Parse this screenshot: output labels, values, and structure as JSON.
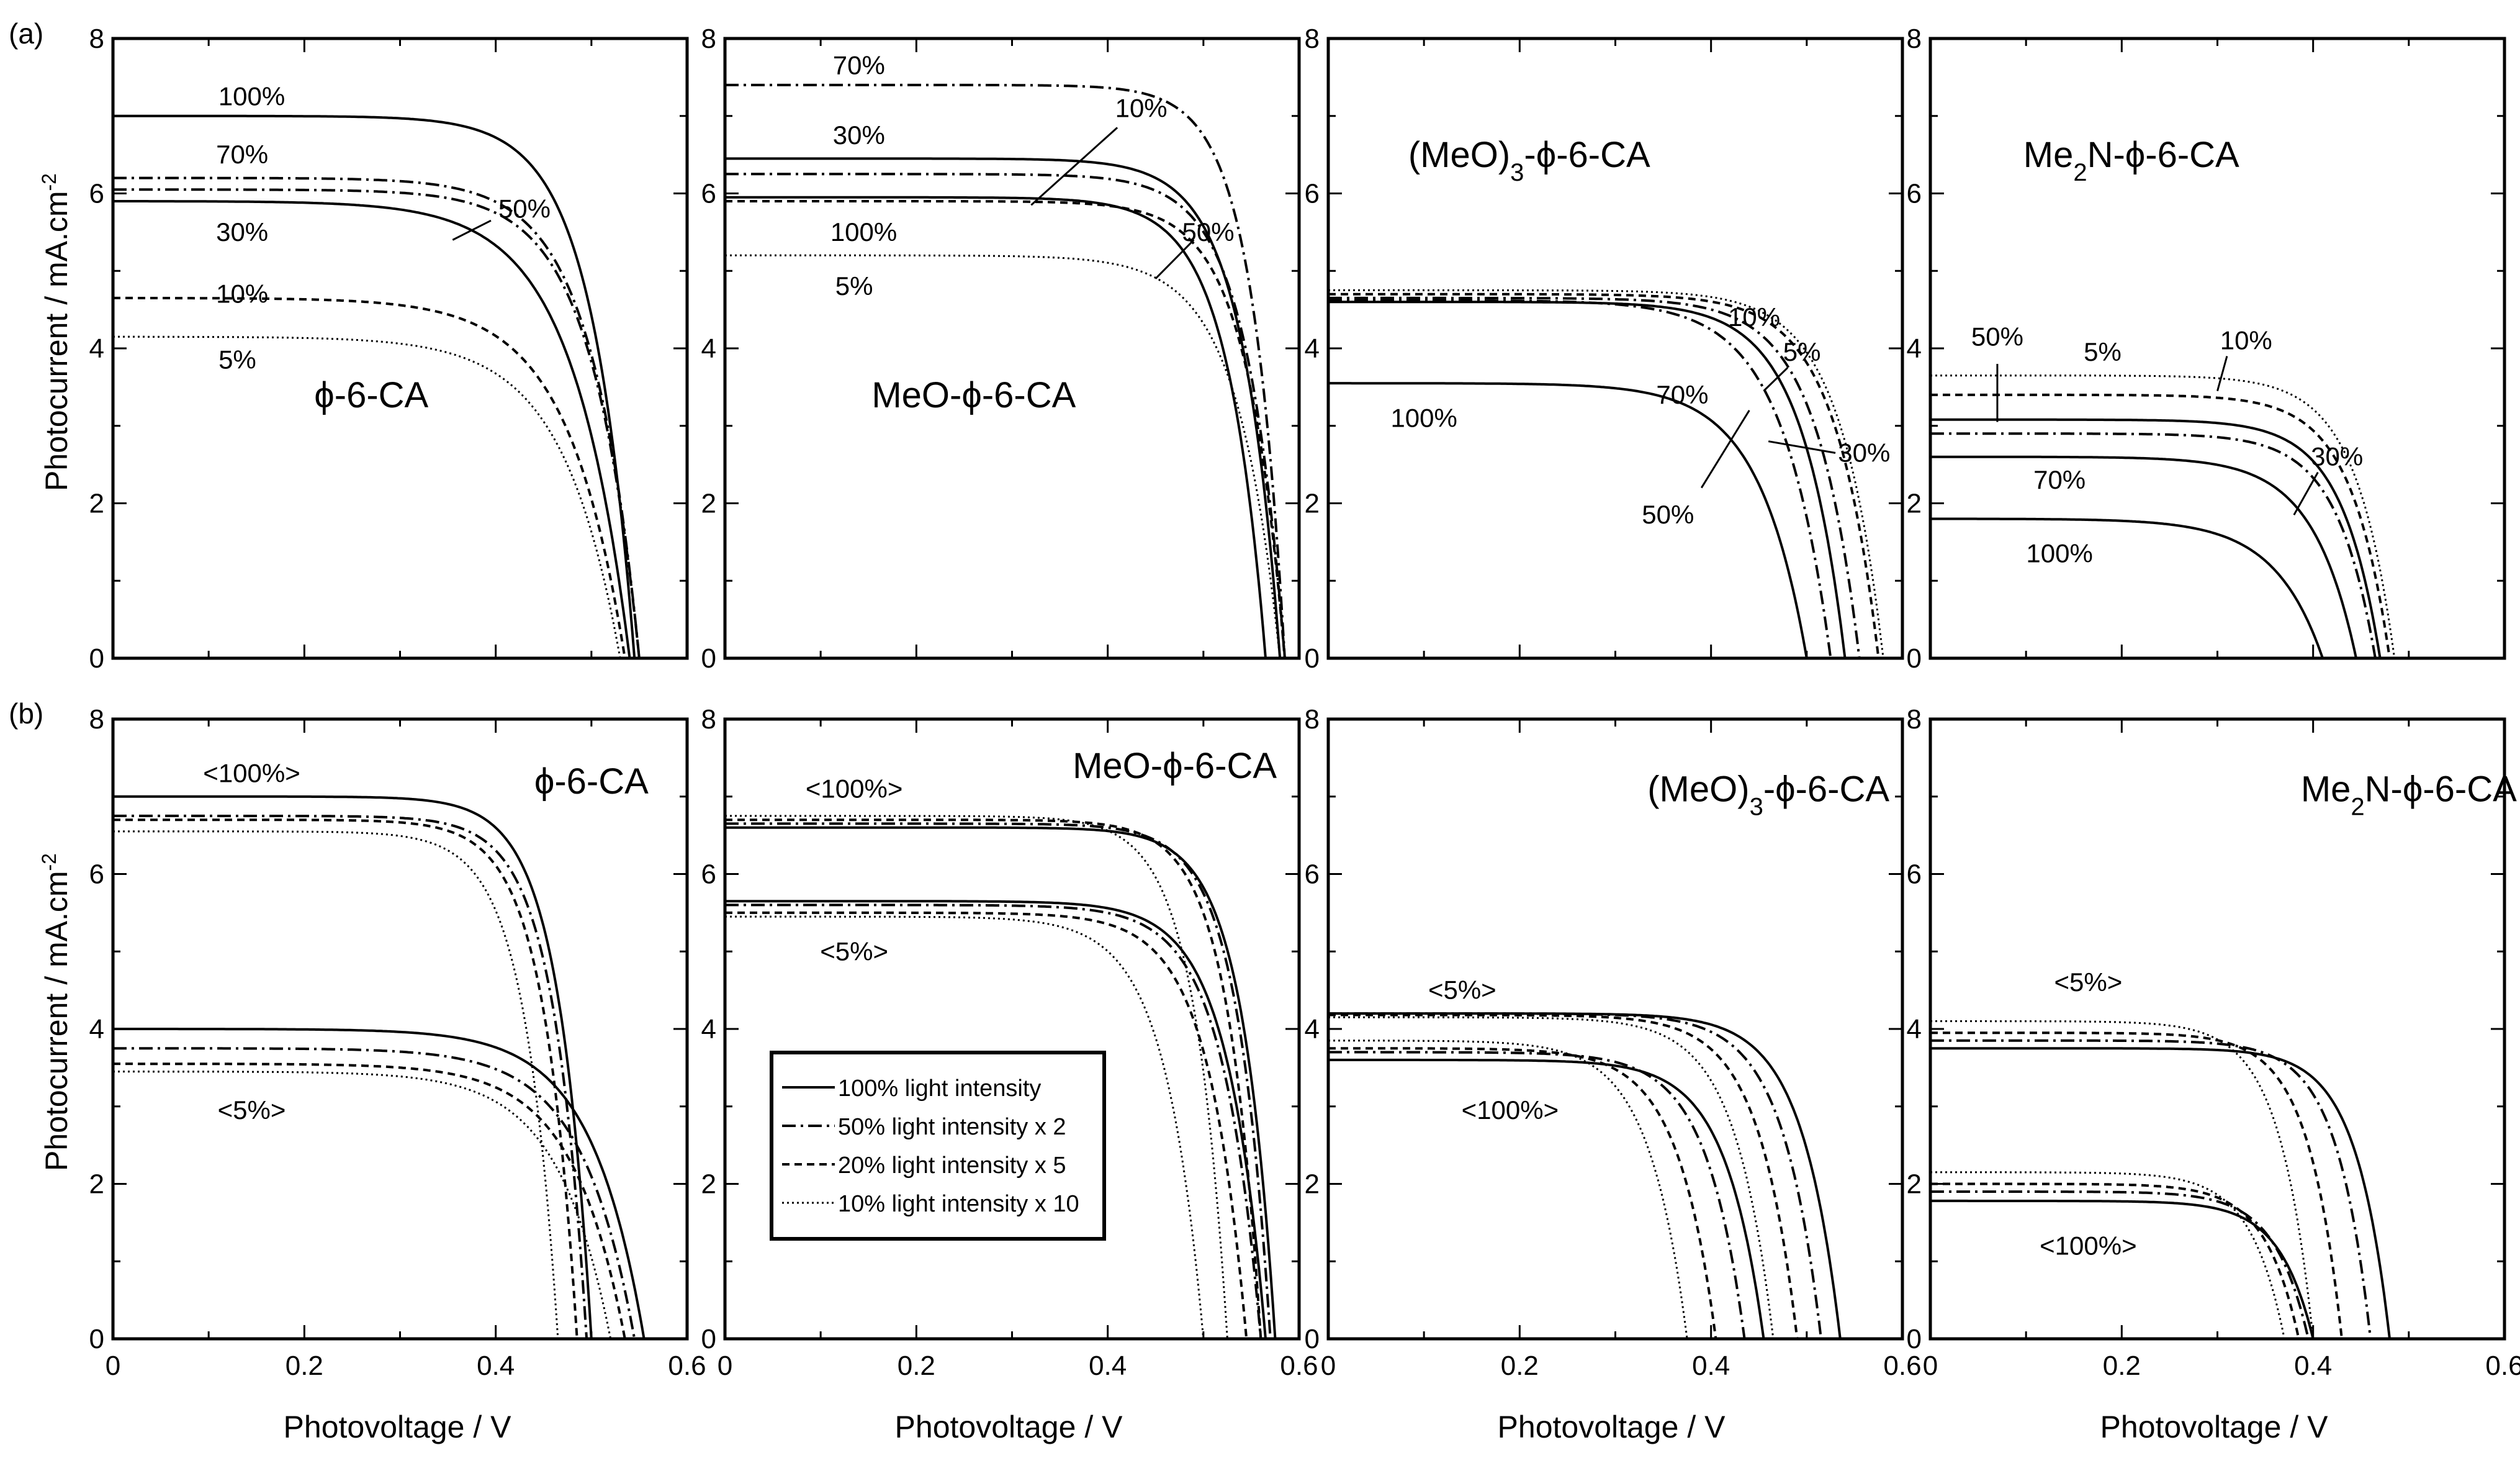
{
  "figure": {
    "panel_letters": [
      "(a)",
      "(b)"
    ],
    "ylabel": "Photocurrent / mA.cm",
    "ylabel_sup": "-2",
    "xlabel": "Photovoltage / V"
  },
  "legend": {
    "entries": [
      {
        "label": "100% light intensity",
        "style": "solid"
      },
      {
        "label": "50% light intensity x 2",
        "style": "dashdot"
      },
      {
        "label": "20% light intensity x 5",
        "style": "dashed"
      },
      {
        "label": "10% light intensity x 10",
        "style": "dotted"
      }
    ]
  },
  "colors": {
    "line": "#000000",
    "background": "#ffffff"
  },
  "chart_data": [
    {
      "type": "line",
      "row": "a",
      "col": 0,
      "title": "ϕ-6-CA",
      "title_parts": [
        {
          "t": "ϕ-6-CA"
        }
      ],
      "xlabel": "Photovoltage / V",
      "ylabel": "Photocurrent / mA.cm-2",
      "xlim": [
        0,
        0.6
      ],
      "ylim": [
        0,
        8
      ],
      "xticks": [
        0,
        0.2,
        0.4,
        0.6
      ],
      "yticks": [
        0,
        2,
        4,
        6,
        8
      ],
      "series": [
        {
          "name": "100%",
          "style": "solid",
          "isc": 7.0,
          "voc": 0.545,
          "k": 0.045
        },
        {
          "name": "70%",
          "style": "dashdot",
          "isc": 6.2,
          "voc": 0.55,
          "k": 0.05
        },
        {
          "name": "50%",
          "style": "dashdot",
          "isc": 6.05,
          "voc": 0.55,
          "k": 0.05
        },
        {
          "name": "30%",
          "style": "solid",
          "isc": 5.9,
          "voc": 0.54,
          "k": 0.06
        },
        {
          "name": "10%",
          "style": "dashed",
          "isc": 4.65,
          "voc": 0.535,
          "k": 0.06
        },
        {
          "name": "5%",
          "style": "dotted",
          "isc": 4.15,
          "voc": 0.53,
          "k": 0.06
        }
      ],
      "annotations": [
        {
          "text": "100%",
          "x": 0.145,
          "y": 7.25
        },
        {
          "text": "70%",
          "x": 0.135,
          "y": 6.5
        },
        {
          "text": "30%",
          "x": 0.135,
          "y": 5.5
        },
        {
          "text": "10%",
          "x": 0.135,
          "y": 4.7
        },
        {
          "text": "5%",
          "x": 0.13,
          "y": 3.85
        },
        {
          "text": "50%",
          "x": 0.43,
          "y": 5.8,
          "leader": [
            0.395,
            5.65,
            0.355,
            5.4
          ]
        }
      ]
    },
    {
      "type": "line",
      "row": "a",
      "col": 1,
      "title": "MeO-ϕ-6-CA",
      "title_parts": [
        {
          "t": "MeO-ϕ-6-CA"
        }
      ],
      "xlabel": "Photovoltage / V",
      "ylabel": "Photocurrent / mA.cm-2",
      "xlim": [
        0,
        0.6
      ],
      "ylim": [
        0,
        8
      ],
      "xticks": [
        0,
        0.2,
        0.4,
        0.6
      ],
      "yticks": [
        0,
        2,
        4,
        6,
        8
      ],
      "series": [
        {
          "name": "70%",
          "style": "dashdot",
          "isc": 7.4,
          "voc": 0.585,
          "k": 0.035
        },
        {
          "name": "30%",
          "style": "solid",
          "isc": 6.45,
          "voc": 0.58,
          "k": 0.04
        },
        {
          "name": "10%",
          "style": "dashdot",
          "isc": 6.25,
          "voc": 0.585,
          "k": 0.04
        },
        {
          "name": "100%",
          "style": "solid",
          "isc": 5.95,
          "voc": 0.565,
          "k": 0.04
        },
        {
          "name": "50%",
          "style": "dashed",
          "isc": 5.9,
          "voc": 0.585,
          "k": 0.04
        },
        {
          "name": "5%",
          "style": "dotted",
          "isc": 5.2,
          "voc": 0.58,
          "k": 0.045
        }
      ],
      "annotations": [
        {
          "text": "70%",
          "x": 0.14,
          "y": 7.65
        },
        {
          "text": "30%",
          "x": 0.14,
          "y": 6.75
        },
        {
          "text": "100%",
          "x": 0.145,
          "y": 5.5
        },
        {
          "text": "5%",
          "x": 0.135,
          "y": 4.8
        },
        {
          "text": "10%",
          "x": 0.435,
          "y": 7.1,
          "leader": [
            0.41,
            6.85,
            0.32,
            5.85
          ]
        },
        {
          "text": "50%",
          "x": 0.505,
          "y": 5.5,
          "leader": [
            0.49,
            5.4,
            0.45,
            4.9
          ]
        }
      ]
    },
    {
      "type": "line",
      "row": "a",
      "col": 2,
      "title": "(MeO)3-ϕ-6-CA",
      "title_parts": [
        {
          "t": "(MeO)"
        },
        {
          "t": "3",
          "sub": true
        },
        {
          "t": "-ϕ-6-CA"
        }
      ],
      "xlabel": "Photovoltage / V",
      "ylabel": "Photocurrent / mA.cm-2",
      "xlim": [
        0,
        0.6
      ],
      "ylim": [
        0,
        8
      ],
      "xticks": [
        0,
        0.2,
        0.4,
        0.6
      ],
      "yticks": [
        0,
        2,
        4,
        6,
        8
      ],
      "series": [
        {
          "name": "5%",
          "style": "dotted",
          "isc": 4.75,
          "voc": 0.58,
          "k": 0.045
        },
        {
          "name": "10%",
          "style": "dashed",
          "isc": 4.7,
          "voc": 0.575,
          "k": 0.045
        },
        {
          "name": "30%",
          "style": "dashdot",
          "isc": 4.65,
          "voc": 0.555,
          "k": 0.045
        },
        {
          "name": "70%",
          "style": "dashdot",
          "isc": 4.62,
          "voc": 0.525,
          "k": 0.05
        },
        {
          "name": "50%",
          "style": "solid",
          "isc": 4.6,
          "voc": 0.54,
          "k": 0.045
        },
        {
          "name": "100%",
          "style": "solid",
          "isc": 3.55,
          "voc": 0.5,
          "k": 0.05
        }
      ],
      "annotations": [
        {
          "text": "100%",
          "x": 0.1,
          "y": 3.1
        },
        {
          "text": "10%",
          "x": 0.445,
          "y": 4.4
        },
        {
          "text": "5%",
          "x": 0.495,
          "y": 3.95,
          "leader": [
            0.48,
            3.75,
            0.455,
            3.45
          ]
        },
        {
          "text": "70%",
          "x": 0.37,
          "y": 3.4
        },
        {
          "text": "30%",
          "x": 0.56,
          "y": 2.65,
          "leader": [
            0.53,
            2.65,
            0.46,
            2.8
          ]
        },
        {
          "text": "50%",
          "x": 0.355,
          "y": 1.85,
          "leader": [
            0.39,
            2.2,
            0.44,
            3.2
          ]
        }
      ]
    },
    {
      "type": "line",
      "row": "a",
      "col": 3,
      "title": "Me2N-ϕ-6-CA",
      "title_parts": [
        {
          "t": "Me"
        },
        {
          "t": "2",
          "sub": true
        },
        {
          "t": "N-ϕ-6-CA"
        }
      ],
      "xlabel": "Photovoltage / V",
      "ylabel": "Photocurrent / mA.cm-2",
      "xlim": [
        0,
        0.6
      ],
      "ylim": [
        0,
        8
      ],
      "xticks": [
        0,
        0.2,
        0.4,
        0.6
      ],
      "yticks": [
        0,
        2,
        4,
        6,
        8
      ],
      "series": [
        {
          "name": "5%",
          "style": "dotted",
          "isc": 3.65,
          "voc": 0.485,
          "k": 0.04
        },
        {
          "name": "10%",
          "style": "dashed",
          "isc": 3.4,
          "voc": 0.48,
          "k": 0.04
        },
        {
          "name": "50%",
          "style": "solid",
          "isc": 3.08,
          "voc": 0.47,
          "k": 0.04
        },
        {
          "name": "30%",
          "style": "dashdot",
          "isc": 2.9,
          "voc": 0.465,
          "k": 0.04
        },
        {
          "name": "70%",
          "style": "solid",
          "isc": 2.6,
          "voc": 0.445,
          "k": 0.045
        },
        {
          "name": "100%",
          "style": "solid",
          "isc": 1.8,
          "voc": 0.41,
          "k": 0.05
        }
      ],
      "annotations": [
        {
          "text": "50%",
          "x": 0.07,
          "y": 4.15,
          "leader": [
            0.07,
            3.8,
            0.07,
            3.05
          ]
        },
        {
          "text": "5%",
          "x": 0.18,
          "y": 3.95
        },
        {
          "text": "10%",
          "x": 0.33,
          "y": 4.1,
          "leader": [
            0.31,
            3.9,
            0.3,
            3.45
          ]
        },
        {
          "text": "70%",
          "x": 0.135,
          "y": 2.3
        },
        {
          "text": "30%",
          "x": 0.425,
          "y": 2.6,
          "leader": [
            0.405,
            2.4,
            0.38,
            1.85
          ]
        },
        {
          "text": "100%",
          "x": 0.135,
          "y": 1.35
        }
      ]
    },
    {
      "type": "line",
      "row": "b",
      "col": 0,
      "title": "ϕ-6-CA",
      "title_parts": [
        {
          "t": "ϕ-6-CA"
        }
      ],
      "xlabel": "Photovoltage / V",
      "ylabel": "Photocurrent / mA.cm-2",
      "xlim": [
        0,
        0.6
      ],
      "ylim": [
        0,
        8
      ],
      "xticks": [
        0,
        0.2,
        0.4,
        0.6
      ],
      "yticks": [
        0,
        2,
        4,
        6,
        8
      ],
      "series": [
        {
          "name": "<100%> 100% light intensity",
          "style": "solid",
          "isc": 7.0,
          "voc": 0.5,
          "k": 0.035
        },
        {
          "name": "<100%> 50% light intensity x 2",
          "style": "dashdot",
          "isc": 6.75,
          "voc": 0.495,
          "k": 0.035
        },
        {
          "name": "<100%> 20% light intensity x 5",
          "style": "dashed",
          "isc": 6.7,
          "voc": 0.485,
          "k": 0.035
        },
        {
          "name": "<100%> 10% light intensity x 10",
          "style": "dotted",
          "isc": 6.55,
          "voc": 0.465,
          "k": 0.035
        },
        {
          "name": "<5%> 100% light intensity",
          "style": "solid",
          "isc": 4.0,
          "voc": 0.555,
          "k": 0.055
        },
        {
          "name": "<5%> 50% light intensity x 2",
          "style": "dashdot",
          "isc": 3.75,
          "voc": 0.545,
          "k": 0.055
        },
        {
          "name": "<5%> 20% light intensity x 5",
          "style": "dashed",
          "isc": 3.55,
          "voc": 0.535,
          "k": 0.055
        },
        {
          "name": "<5%> 10% light intensity x 10",
          "style": "dotted",
          "isc": 3.45,
          "voc": 0.52,
          "k": 0.055
        }
      ],
      "annotations": [
        {
          "text": "<100%>",
          "x": 0.145,
          "y": 7.3
        },
        {
          "text": "<5%>",
          "x": 0.145,
          "y": 2.95
        }
      ]
    },
    {
      "type": "line",
      "row": "b",
      "col": 1,
      "title": "MeO-ϕ-6-CA",
      "title_parts": [
        {
          "t": "MeO-ϕ-6-CA"
        }
      ],
      "xlabel": "Photovoltage / V",
      "ylabel": "Photocurrent / mA.cm-2",
      "xlim": [
        0,
        0.6
      ],
      "ylim": [
        0,
        8
      ],
      "xticks": [
        0,
        0.2,
        0.4,
        0.6
      ],
      "yticks": [
        0,
        2,
        4,
        6,
        8
      ],
      "series": [
        {
          "name": "<100%> 100% light intensity",
          "style": "solid",
          "isc": 6.6,
          "voc": 0.575,
          "k": 0.035
        },
        {
          "name": "<100%> 50% light intensity x 2",
          "style": "dashdot",
          "isc": 6.65,
          "voc": 0.57,
          "k": 0.035
        },
        {
          "name": "<100%> 20% light intensity x 5",
          "style": "dashed",
          "isc": 6.7,
          "voc": 0.56,
          "k": 0.035
        },
        {
          "name": "<100%> 10% light intensity x 10",
          "style": "dotted",
          "isc": 6.75,
          "voc": 0.525,
          "k": 0.035
        },
        {
          "name": "<5%> 100% light intensity",
          "style": "solid",
          "isc": 5.65,
          "voc": 0.565,
          "k": 0.04
        },
        {
          "name": "<5%> 50% light intensity x 2",
          "style": "dashdot",
          "isc": 5.6,
          "voc": 0.56,
          "k": 0.04
        },
        {
          "name": "<5%> 20% light intensity x 5",
          "style": "dashed",
          "isc": 5.5,
          "voc": 0.545,
          "k": 0.04
        },
        {
          "name": "<5%> 10% light intensity x 10",
          "style": "dotted",
          "isc": 5.45,
          "voc": 0.5,
          "k": 0.04
        }
      ],
      "annotations": [
        {
          "text": "<100%>",
          "x": 0.135,
          "y": 7.1
        },
        {
          "text": "<5%>",
          "x": 0.135,
          "y": 5.0
        }
      ]
    },
    {
      "type": "line",
      "row": "b",
      "col": 2,
      "title": "(MeO)3-ϕ-6-CA",
      "title_parts": [
        {
          "t": "(MeO)"
        },
        {
          "t": "3",
          "sub": true
        },
        {
          "t": "-ϕ-6-CA"
        }
      ],
      "xlabel": "Photovoltage / V",
      "ylabel": "Photocurrent / mA.cm-2",
      "xlim": [
        0,
        0.6
      ],
      "ylim": [
        0,
        8
      ],
      "xticks": [
        0,
        0.2,
        0.4,
        0.6
      ],
      "yticks": [
        0,
        2,
        4,
        6,
        8
      ],
      "series": [
        {
          "name": "<5%> 100% light intensity",
          "style": "solid",
          "isc": 4.2,
          "voc": 0.535,
          "k": 0.04
        },
        {
          "name": "<5%> 50% light intensity x 2",
          "style": "dashdot",
          "isc": 4.2,
          "voc": 0.515,
          "k": 0.04
        },
        {
          "name": "<5%> 20% light intensity x 5",
          "style": "dashed",
          "isc": 4.18,
          "voc": 0.49,
          "k": 0.04
        },
        {
          "name": "<5%> 10% light intensity x 10",
          "style": "dotted",
          "isc": 4.15,
          "voc": 0.465,
          "k": 0.04
        },
        {
          "name": "<100%> 100% light intensity",
          "style": "solid",
          "isc": 3.6,
          "voc": 0.455,
          "k": 0.04
        },
        {
          "name": "<100%> 50% light intensity x 2",
          "style": "dashdot",
          "isc": 3.7,
          "voc": 0.435,
          "k": 0.04
        },
        {
          "name": "<100%> 20% light intensity x 5",
          "style": "dashed",
          "isc": 3.75,
          "voc": 0.405,
          "k": 0.04
        },
        {
          "name": "<100%> 10% light intensity x 10",
          "style": "dotted",
          "isc": 3.85,
          "voc": 0.375,
          "k": 0.04
        }
      ],
      "annotations": [
        {
          "text": "<5%>",
          "x": 0.14,
          "y": 4.5
        },
        {
          "text": "<100%>",
          "x": 0.19,
          "y": 2.95
        }
      ]
    },
    {
      "type": "line",
      "row": "b",
      "col": 3,
      "title": "Me2N-ϕ-6-CA",
      "title_parts": [
        {
          "t": "Me"
        },
        {
          "t": "2",
          "sub": true
        },
        {
          "t": "N-ϕ-6-CA"
        }
      ],
      "xlabel": "Photovoltage / V",
      "ylabel": "Photocurrent / mA.cm-2",
      "xlim": [
        0,
        0.6
      ],
      "ylim": [
        0,
        8
      ],
      "xticks": [
        0,
        0.2,
        0.4,
        0.6
      ],
      "yticks": [
        0,
        2,
        4,
        6,
        8
      ],
      "series": [
        {
          "name": "<5%> 100% light intensity",
          "style": "solid",
          "isc": 3.75,
          "voc": 0.48,
          "k": 0.035
        },
        {
          "name": "<5%> 50% light intensity x 2",
          "style": "dashdot",
          "isc": 3.85,
          "voc": 0.46,
          "k": 0.035
        },
        {
          "name": "<5%> 20% light intensity x 5",
          "style": "dashed",
          "isc": 3.95,
          "voc": 0.43,
          "k": 0.035
        },
        {
          "name": "<5%> 10% light intensity x 10",
          "style": "dotted",
          "isc": 4.1,
          "voc": 0.4,
          "k": 0.035
        },
        {
          "name": "<100%> 100% light intensity",
          "style": "solid",
          "isc": 1.78,
          "voc": 0.4,
          "k": 0.035
        },
        {
          "name": "<100%> 50% light intensity x 2",
          "style": "dashdot",
          "isc": 1.9,
          "voc": 0.395,
          "k": 0.035
        },
        {
          "name": "<100%> 20% light intensity x 5",
          "style": "dashed",
          "isc": 2.0,
          "voc": 0.385,
          "k": 0.035
        },
        {
          "name": "<100%> 10% light intensity x 10",
          "style": "dotted",
          "isc": 2.15,
          "voc": 0.37,
          "k": 0.035
        }
      ],
      "annotations": [
        {
          "text": "<5%>",
          "x": 0.165,
          "y": 4.6
        },
        {
          "text": "<100%>",
          "x": 0.165,
          "y": 1.2
        }
      ]
    }
  ]
}
